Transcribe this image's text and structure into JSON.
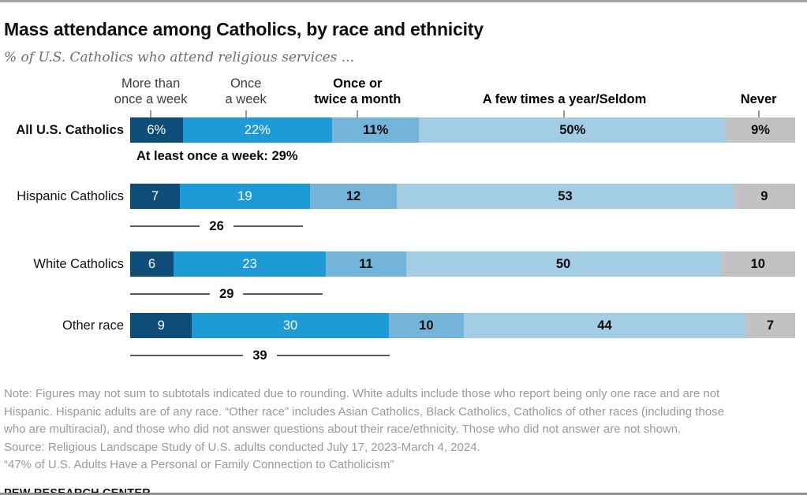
{
  "page": {
    "title": "Mass attendance among Catholics, by race and ethnicity",
    "subtitle": "% of U.S. Catholics who attend religious services ..."
  },
  "headers": [
    {
      "line1": "More than",
      "line2": "once a week",
      "bold": false
    },
    {
      "line1": "Once",
      "line2": "a week",
      "bold": false
    },
    {
      "line1": "Once or",
      "line2": "twice a month",
      "bold": true
    },
    {
      "line1": "",
      "line2": "A few times a year/Seldom",
      "bold": true
    },
    {
      "line1": "",
      "line2": "Never",
      "bold": true
    }
  ],
  "rows": [
    {
      "label": "All U.S. Catholics",
      "cells": [
        "6%",
        "22%",
        "11%",
        "50%",
        "9%"
      ],
      "values": [
        6,
        22,
        11,
        50,
        9
      ],
      "subtotal_text": "At least once a week: 29%"
    },
    {
      "label": "Hispanic Catholics",
      "cells": [
        "7",
        "19",
        "12",
        "53",
        "9"
      ],
      "values": [
        7,
        19,
        12,
        53,
        9
      ],
      "subtotal": "26",
      "subtotal_span_pct": 26
    },
    {
      "label": "White Catholics",
      "cells": [
        "6",
        "23",
        "11",
        "50",
        "10"
      ],
      "values": [
        6,
        23,
        11,
        50,
        10
      ],
      "subtotal": "29",
      "subtotal_span_pct": 29
    },
    {
      "label": "Other race",
      "cells": [
        "9",
        "30",
        "10",
        "44",
        "7"
      ],
      "values": [
        9,
        30,
        10,
        44,
        7
      ],
      "subtotal": "39",
      "subtotal_span_pct": 39
    }
  ],
  "chart_data": {
    "type": "bar",
    "stacked": true,
    "orientation": "horizontal",
    "title": "Mass attendance among Catholics, by race and ethnicity",
    "subtitle": "% of U.S. Catholics who attend religious services ...",
    "categories": [
      "All U.S. Catholics",
      "Hispanic Catholics",
      "White Catholics",
      "Other race"
    ],
    "series": [
      {
        "name": "More than once a week",
        "values": [
          6,
          7,
          6,
          9
        ]
      },
      {
        "name": "Once a week",
        "values": [
          22,
          19,
          23,
          30
        ]
      },
      {
        "name": "Once or twice a month",
        "values": [
          11,
          12,
          11,
          10
        ]
      },
      {
        "name": "A few times a year/Seldom",
        "values": [
          50,
          53,
          50,
          44
        ]
      },
      {
        "name": "Never",
        "values": [
          9,
          9,
          10,
          7
        ]
      }
    ],
    "subtotals_at_least_once_a_week": [
      29,
      26,
      29,
      39
    ],
    "colors": [
      "#0E4D78",
      "#1D9BD6",
      "#74B3DA",
      "#A3CCE5",
      "#C2C2C2"
    ],
    "value_format": "percent",
    "xlim": [
      0,
      100
    ],
    "legend_position": "top",
    "grid": false
  },
  "notes": {
    "line1": "Note: Figures may not sum to subtotals indicated due to rounding. White adults include those who report being only one race and are not",
    "line2": "Hispanic. Hispanic adults are of any race. “Other race” includes Asian Catholics, Black Catholics, Catholics of other races (including those",
    "line3": "who are multiracial), and those who did not answer questions about their race/ethnicity. Those who did not answer are not shown.",
    "source": "Source: Religious Landscape Study of U.S. adults conducted July 17, 2023-March 4, 2024.",
    "quote": "“47% of U.S. Adults Have a Personal or Family Connection to Catholicism”"
  },
  "branding": {
    "name": "PEW RESEARCH CENTER"
  }
}
